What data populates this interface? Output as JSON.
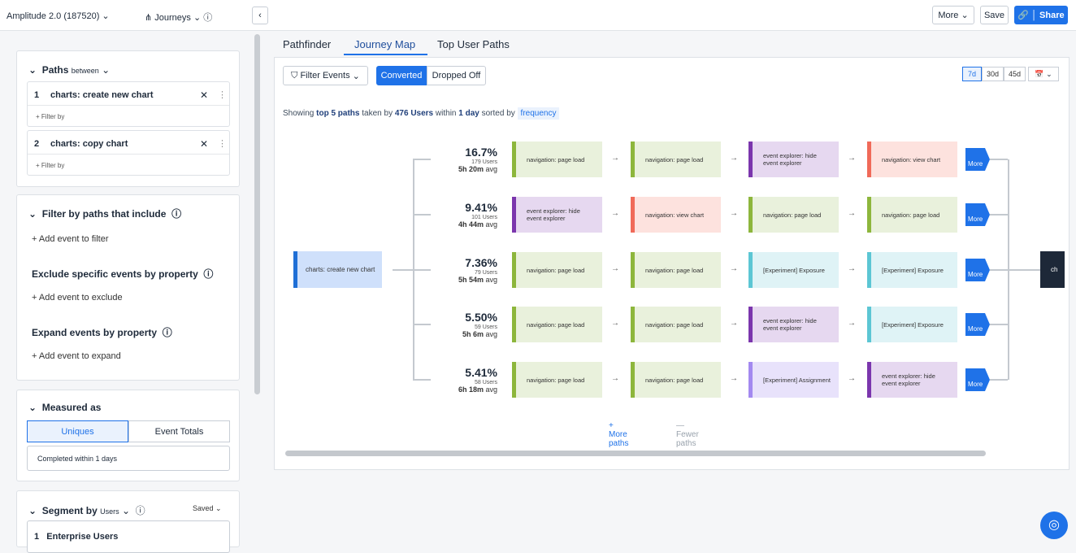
{
  "topbar": {
    "project": "Amplitude 2.0 (187520)",
    "chart_type": "Journeys",
    "more": "More",
    "save": "Save",
    "share": "Share"
  },
  "sidebar": {
    "paths": {
      "title": "Paths",
      "mode": "between",
      "events": [
        {
          "index": "1",
          "name": "charts: create new chart",
          "filter": "+ Filter by"
        },
        {
          "index": "2",
          "name": "charts: copy chart",
          "filter": "+ Filter by"
        }
      ]
    },
    "filters": {
      "title": "Filter by paths that include",
      "add": "+ Add event to filter",
      "exclude_title": "Exclude specific events by property",
      "exclude_add": "+ Add event to exclude",
      "expand_title": "Expand events by property",
      "expand_add": "+ Add event to expand"
    },
    "measured": {
      "title": "Measured as",
      "options": [
        "Uniques",
        "Event Totals"
      ],
      "completed": "Completed within 1 days"
    },
    "segment": {
      "title": "Segment by",
      "scope": "Users",
      "saved": "Saved",
      "items": [
        {
          "index": "1",
          "name": "Enterprise Users"
        }
      ]
    }
  },
  "tabs": [
    "Pathfinder",
    "Journey Map",
    "Top User Paths"
  ],
  "toolbar": {
    "filter": "Filter Events",
    "toggle": [
      "Converted",
      "Dropped Off"
    ],
    "ranges": [
      "7d",
      "30d",
      "45d"
    ]
  },
  "summary": [
    "Showing",
    "top 5 paths",
    "taken by",
    "476 Users",
    "within",
    "1 day",
    "sorted by",
    "frequency"
  ],
  "journey": {
    "start": "charts: create new chart",
    "end": "ch",
    "paths": [
      {
        "percent": "16.7%",
        "users": "179 Users",
        "avg_time": "5h 20m",
        "avg_unit": "avg",
        "more": "More",
        "steps": [
          {
            "label": "navigation: page load",
            "color": "#8db63c",
            "bg": "#e9f1dc"
          },
          {
            "label": "navigation: page load",
            "color": "#8db63c",
            "bg": "#e9f1dc"
          },
          {
            "label": "event explorer: hide event explorer",
            "color": "#7b36ad",
            "bg": "#e6d8f0"
          },
          {
            "label": "navigation: view chart",
            "color": "#f06a59",
            "bg": "#fde2de"
          }
        ]
      },
      {
        "percent": "9.41%",
        "users": "101 Users",
        "avg_time": "4h 44m",
        "avg_unit": "avg",
        "more": "More",
        "steps": [
          {
            "label": "event explorer: hide event explorer",
            "color": "#7b36ad",
            "bg": "#e6d8f0"
          },
          {
            "label": "navigation: view chart",
            "color": "#f06a59",
            "bg": "#fde2de"
          },
          {
            "label": "navigation: page load",
            "color": "#8db63c",
            "bg": "#e9f1dc"
          },
          {
            "label": "navigation: page load",
            "color": "#8db63c",
            "bg": "#e9f1dc"
          }
        ]
      },
      {
        "percent": "7.36%",
        "users": "79 Users",
        "avg_time": "5h 54m",
        "avg_unit": "avg",
        "more": "More",
        "steps": [
          {
            "label": "navigation: page load",
            "color": "#8db63c",
            "bg": "#e9f1dc"
          },
          {
            "label": "navigation: page load",
            "color": "#8db63c",
            "bg": "#e9f1dc"
          },
          {
            "label": "[Experiment] Exposure",
            "color": "#5cc6d4",
            "bg": "#dff3f6"
          },
          {
            "label": "[Experiment] Exposure",
            "color": "#5cc6d4",
            "bg": "#dff3f6"
          }
        ]
      },
      {
        "percent": "5.50%",
        "users": "59 Users",
        "avg_time": "5h 6m",
        "avg_unit": "avg",
        "more": "More",
        "steps": [
          {
            "label": "navigation: page load",
            "color": "#8db63c",
            "bg": "#e9f1dc"
          },
          {
            "label": "navigation: page load",
            "color": "#8db63c",
            "bg": "#e9f1dc"
          },
          {
            "label": "event explorer: hide event explorer",
            "color": "#7b36ad",
            "bg": "#e6d8f0"
          },
          {
            "label": "[Experiment] Exposure",
            "color": "#5cc6d4",
            "bg": "#dff3f6"
          }
        ]
      },
      {
        "percent": "5.41%",
        "users": "58 Users",
        "avg_time": "6h 18m",
        "avg_unit": "avg",
        "more": "More",
        "steps": [
          {
            "label": "navigation: page load",
            "color": "#8db63c",
            "bg": "#e9f1dc"
          },
          {
            "label": "navigation: page load",
            "color": "#8db63c",
            "bg": "#e9f1dc"
          },
          {
            "label": "[Experiment] Assignment",
            "color": "#a389f0",
            "bg": "#e8e2fb"
          },
          {
            "label": "event explorer: hide event explorer",
            "color": "#7b36ad",
            "bg": "#e6d8f0"
          }
        ]
      }
    ]
  },
  "footer_links": [
    "+ More paths",
    "— Fewer paths"
  ]
}
